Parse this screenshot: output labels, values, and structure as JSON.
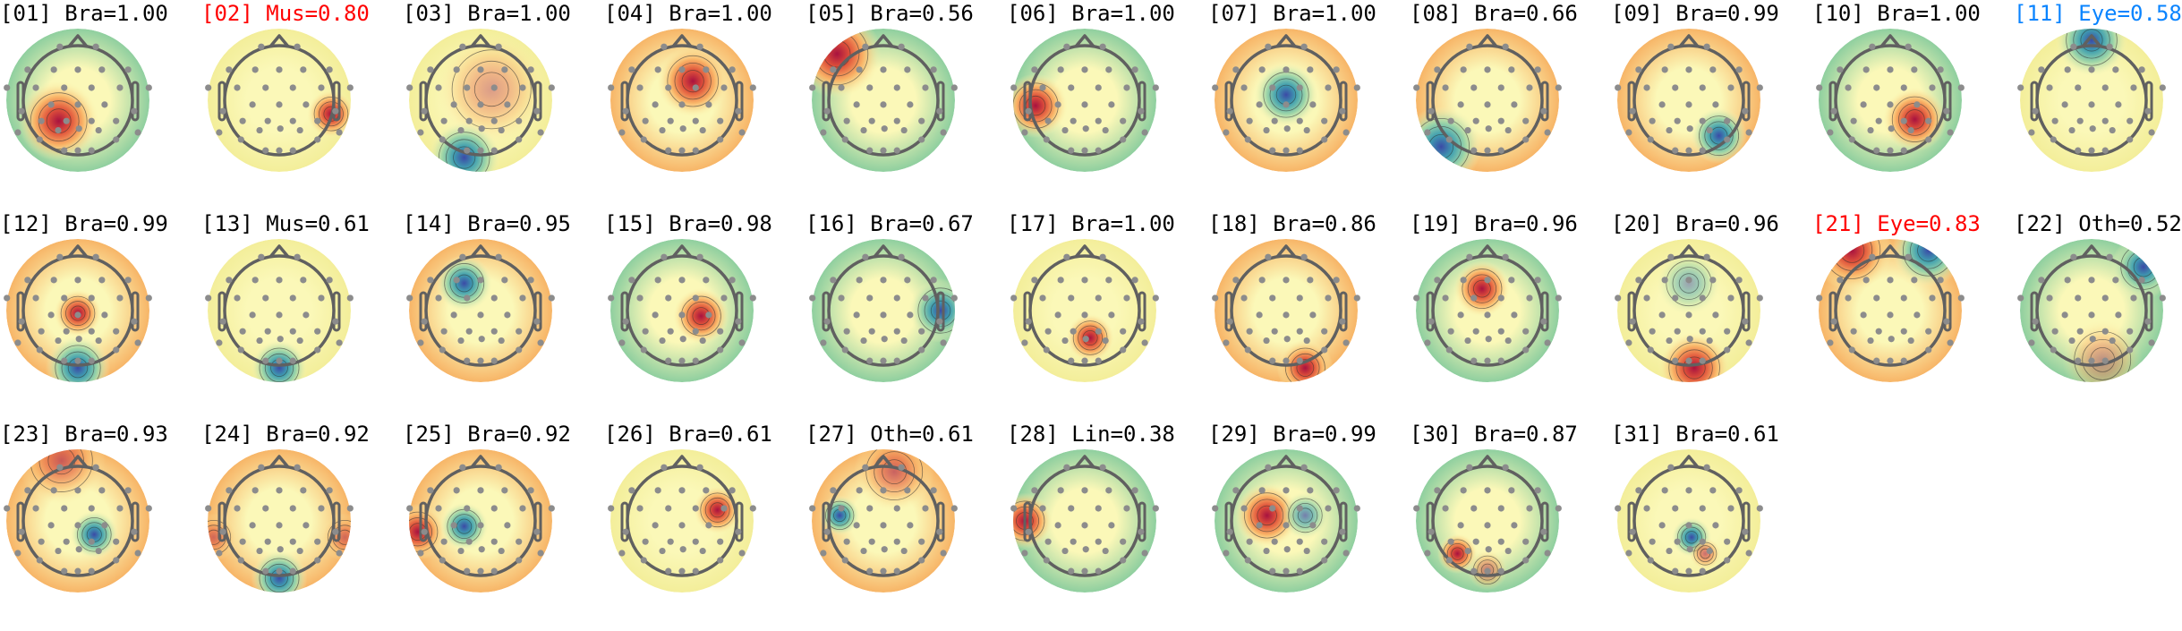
{
  "colors": {
    "default_title": "#000000",
    "flag_red": "#ff0000",
    "flag_blue": "#0a84ff",
    "head_outline": "#606060",
    "electrode": "#8c8c8c"
  },
  "components": [
    {
      "title": "[01] Bra=1.00",
      "title_color": "#000000"
    },
    {
      "title": "[02] Mus=0.80",
      "title_color": "#ff0000"
    },
    {
      "title": "[03] Bra=1.00",
      "title_color": "#000000"
    },
    {
      "title": "[04] Bra=1.00",
      "title_color": "#000000"
    },
    {
      "title": "[05] Bra=0.56",
      "title_color": "#000000"
    },
    {
      "title": "[06] Bra=1.00",
      "title_color": "#000000"
    },
    {
      "title": "[07] Bra=1.00",
      "title_color": "#000000"
    },
    {
      "title": "[08] Bra=0.66",
      "title_color": "#000000"
    },
    {
      "title": "[09] Bra=0.99",
      "title_color": "#000000"
    },
    {
      "title": "[10] Bra=1.00",
      "title_color": "#000000"
    },
    {
      "title": "[11] Eye=0.58",
      "title_color": "#0a84ff"
    },
    {
      "title": "[12] Bra=0.99",
      "title_color": "#000000"
    },
    {
      "title": "[13] Mus=0.61",
      "title_color": "#000000"
    },
    {
      "title": "[14] Bra=0.95",
      "title_color": "#000000"
    },
    {
      "title": "[15] Bra=0.98",
      "title_color": "#000000"
    },
    {
      "title": "[16] Bra=0.67",
      "title_color": "#000000"
    },
    {
      "title": "[17] Bra=1.00",
      "title_color": "#000000"
    },
    {
      "title": "[18] Bra=0.86",
      "title_color": "#000000"
    },
    {
      "title": "[19] Bra=0.96",
      "title_color": "#000000"
    },
    {
      "title": "[20] Bra=0.96",
      "title_color": "#000000"
    },
    {
      "title": "[21] Eye=0.83",
      "title_color": "#ff0000"
    },
    {
      "title": "[22] Oth=0.52",
      "title_color": "#000000"
    },
    {
      "title": "[23] Bra=0.93",
      "title_color": "#000000"
    },
    {
      "title": "[24] Bra=0.92",
      "title_color": "#000000"
    },
    {
      "title": "[25] Bra=0.92",
      "title_color": "#000000"
    },
    {
      "title": "[26] Bra=0.61",
      "title_color": "#000000"
    },
    {
      "title": "[27] Oth=0.61",
      "title_color": "#000000"
    },
    {
      "title": "[28] Lin=0.38",
      "title_color": "#000000"
    },
    {
      "title": "[29] Bra=0.99",
      "title_color": "#000000"
    },
    {
      "title": "[30] Bra=0.87",
      "title_color": "#000000"
    },
    {
      "title": "[31] Bra=0.61",
      "title_color": "#000000"
    }
  ]
}
